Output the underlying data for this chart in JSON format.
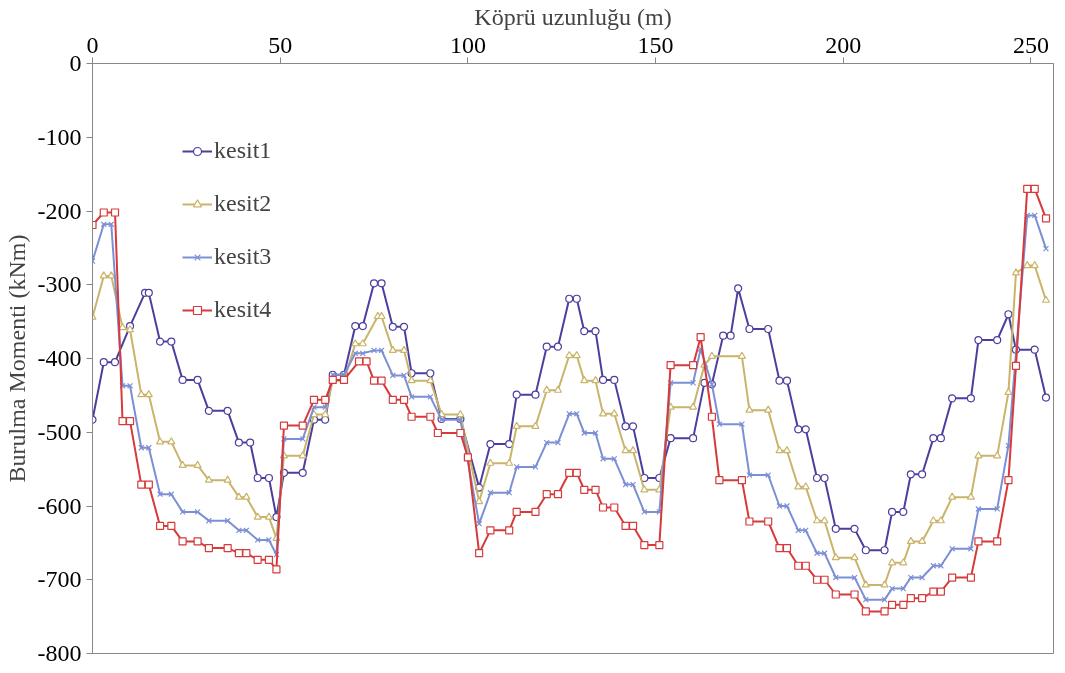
{
  "chart_data": {
    "type": "line",
    "xlabel": "Köprü uzunluğu (m)",
    "ylabel": "Burulma Momenti (kNm)",
    "xlim": [
      0,
      256
    ],
    "ylim": [
      -800,
      0
    ],
    "xticks": [
      0,
      50,
      100,
      150,
      200,
      250
    ],
    "yticks": [
      0,
      -100,
      -200,
      -300,
      -400,
      -500,
      -600,
      -700,
      -800
    ],
    "grid": false,
    "legend": "top left",
    "line_style": "solid",
    "series": [
      {
        "name": "kesit1",
        "color": "#4b3f9e",
        "marker": "circle",
        "x": [
          0,
          3,
          6,
          10,
          14,
          15,
          18,
          21,
          24,
          28,
          31,
          36,
          39,
          42,
          44,
          47,
          49,
          51,
          56,
          59,
          62,
          64,
          67,
          70,
          72,
          75,
          77,
          80,
          83,
          85,
          90,
          93,
          98,
          103,
          106,
          111,
          113,
          118,
          121,
          124,
          127,
          129,
          131,
          134,
          136,
          139,
          142,
          144,
          147,
          151,
          154,
          160,
          163,
          165,
          168,
          170,
          172,
          175,
          180,
          183,
          185,
          188,
          190,
          193,
          195,
          198,
          203,
          206,
          211,
          213,
          216,
          218,
          221,
          224,
          226,
          229,
          234,
          236,
          241,
          244,
          246,
          251,
          254
        ],
        "values": [
          -483,
          -405,
          -405,
          -356,
          -311,
          -311,
          -377,
          -377,
          -429,
          -429,
          -471,
          -471,
          -514,
          -514,
          -562,
          -562,
          -615,
          -555,
          -555,
          -483,
          -483,
          -422,
          -422,
          -356,
          -356,
          -298,
          -298,
          -357,
          -357,
          -420,
          -420,
          -482,
          -482,
          -575,
          -516,
          -516,
          -449,
          -449,
          -384,
          -384,
          -319,
          -319,
          -363,
          -363,
          -429,
          -429,
          -492,
          -492,
          -562,
          -562,
          -508,
          -508,
          -433,
          -435,
          -369,
          -369,
          -305,
          -360,
          -360,
          -430,
          -430,
          -496,
          -496,
          -562,
          -562,
          -631,
          -631,
          -660,
          -660,
          -608,
          -608,
          -557,
          -557,
          -508,
          -508,
          -454,
          -454,
          -375,
          -375,
          -340,
          -388,
          -388,
          -453
        ]
      },
      {
        "name": "kesit2",
        "color": "#c9b46a",
        "marker": "triangle",
        "x": [
          0,
          3,
          5,
          8,
          10,
          13,
          15,
          18,
          21,
          24,
          28,
          31,
          36,
          39,
          41,
          44,
          47,
          49,
          51,
          56,
          59,
          62,
          64,
          67,
          70,
          72,
          76,
          77,
          80,
          83,
          85,
          90,
          93,
          98,
          103,
          106,
          111,
          113,
          118,
          121,
          124,
          127,
          129,
          131,
          134,
          136,
          139,
          142,
          144,
          147,
          151,
          154,
          160,
          163,
          165,
          173,
          175,
          180,
          183,
          185,
          188,
          190,
          193,
          195,
          198,
          203,
          206,
          211,
          213,
          216,
          218,
          221,
          224,
          226,
          229,
          234,
          236,
          241,
          244,
          246,
          249,
          251,
          254
        ],
        "values": [
          -344,
          -288,
          -288,
          -358,
          -361,
          -449,
          -449,
          -513,
          -513,
          -545,
          -545,
          -565,
          -565,
          -588,
          -588,
          -615,
          -615,
          -644,
          -532,
          -532,
          -476,
          -476,
          -430,
          -430,
          -380,
          -380,
          -343,
          -343,
          -389,
          -389,
          -430,
          -430,
          -476,
          -476,
          -594,
          -542,
          -542,
          -492,
          -492,
          -443,
          -443,
          -396,
          -396,
          -430,
          -430,
          -475,
          -475,
          -525,
          -525,
          -578,
          -578,
          -466,
          -466,
          -409,
          -397,
          -397,
          -470,
          -470,
          -525,
          -525,
          -574,
          -574,
          -620,
          -620,
          -670,
          -670,
          -707,
          -707,
          -677,
          -677,
          -648,
          -648,
          -620,
          -620,
          -588,
          -588,
          -532,
          -532,
          -446,
          -284,
          -274,
          -274,
          -321
        ]
      },
      {
        "name": "kesit3",
        "color": "#7d8fd4",
        "marker": "cross",
        "x": [
          0,
          3,
          5,
          8,
          10,
          13,
          15,
          18,
          21,
          24,
          28,
          31,
          36,
          39,
          41,
          44,
          47,
          49,
          51,
          56,
          59,
          62,
          64,
          67,
          70,
          72,
          75,
          77,
          80,
          83,
          85,
          90,
          93,
          98,
          103,
          106,
          111,
          113,
          118,
          121,
          124,
          127,
          129,
          131,
          134,
          136,
          139,
          142,
          144,
          147,
          151,
          154,
          160,
          162,
          165,
          167,
          173,
          175,
          180,
          183,
          185,
          188,
          190,
          193,
          195,
          198,
          203,
          206,
          211,
          213,
          216,
          218,
          221,
          224,
          226,
          229,
          234,
          236,
          241,
          244,
          249,
          251,
          254
        ],
        "values": [
          -268,
          -218,
          -218,
          -437,
          -437,
          -521,
          -521,
          -584,
          -584,
          -608,
          -608,
          -620,
          -620,
          -633,
          -633,
          -646,
          -646,
          -666,
          -509,
          -509,
          -466,
          -466,
          -422,
          -422,
          -393,
          -393,
          -389,
          -389,
          -423,
          -423,
          -452,
          -452,
          -483,
          -483,
          -624,
          -582,
          -582,
          -547,
          -547,
          -514,
          -514,
          -475,
          -475,
          -501,
          -501,
          -536,
          -536,
          -571,
          -571,
          -608,
          -608,
          -433,
          -433,
          -387,
          -435,
          -489,
          -489,
          -558,
          -558,
          -600,
          -600,
          -633,
          -633,
          -664,
          -664,
          -697,
          -697,
          -727,
          -727,
          -712,
          -712,
          -697,
          -697,
          -681,
          -681,
          -658,
          -658,
          -604,
          -604,
          -518,
          -206,
          -206,
          -251
        ]
      },
      {
        "name": "kesit4",
        "color": "#d63a3a",
        "marker": "square",
        "x": [
          0,
          3,
          6,
          8,
          10,
          13,
          15,
          18,
          21,
          24,
          28,
          31,
          36,
          39,
          41,
          44,
          47,
          49,
          51,
          56,
          59,
          62,
          64,
          67,
          71,
          73,
          75,
          77,
          80,
          83,
          85,
          90,
          92,
          98,
          100,
          103,
          106,
          111,
          113,
          118,
          121,
          124,
          127,
          129,
          131,
          134,
          136,
          139,
          142,
          144,
          147,
          151,
          154,
          160,
          162,
          165,
          167,
          173,
          175,
          180,
          183,
          185,
          188,
          190,
          193,
          195,
          198,
          203,
          206,
          211,
          213,
          216,
          218,
          221,
          224,
          226,
          229,
          234,
          236,
          241,
          244,
          246,
          249,
          251,
          254
        ],
        "values": [
          -219,
          -202,
          -202,
          -485,
          -485,
          -571,
          -571,
          -627,
          -627,
          -648,
          -648,
          -657,
          -657,
          -664,
          -664,
          -673,
          -673,
          -686,
          -491,
          -491,
          -456,
          -456,
          -429,
          -429,
          -404,
          -404,
          -430,
          -430,
          -456,
          -456,
          -479,
          -479,
          -501,
          -501,
          -534,
          -664,
          -633,
          -633,
          -608,
          -608,
          -584,
          -584,
          -555,
          -555,
          -578,
          -578,
          -602,
          -602,
          -627,
          -627,
          -653,
          -653,
          -409,
          -409,
          -371,
          -479,
          -565,
          -565,
          -621,
          -621,
          -657,
          -657,
          -681,
          -681,
          -700,
          -700,
          -720,
          -720,
          -743,
          -743,
          -734,
          -734,
          -725,
          -725,
          -716,
          -716,
          -697,
          -697,
          -648,
          -648,
          -565,
          -410,
          -170,
          -170,
          -210
        ]
      }
    ]
  }
}
